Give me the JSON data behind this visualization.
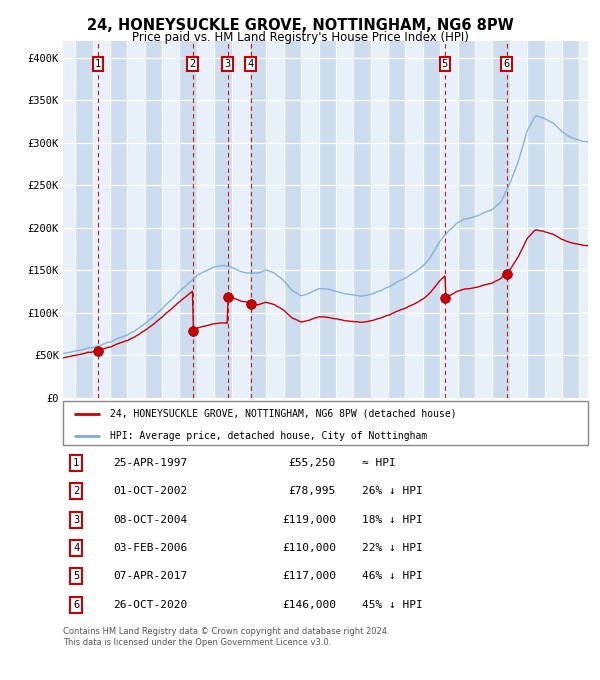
{
  "title1": "24, HONEYSUCKLE GROVE, NOTTINGHAM, NG6 8PW",
  "title2": "Price paid vs. HM Land Registry's House Price Index (HPI)",
  "legend_line1": "24, HONEYSUCKLE GROVE, NOTTINGHAM, NG6 8PW (detached house)",
  "legend_line2": "HPI: Average price, detached house, City of Nottingham",
  "footer1": "Contains HM Land Registry data © Crown copyright and database right 2024.",
  "footer2": "This data is licensed under the Open Government Licence v3.0.",
  "sale_color": "#cc0000",
  "hpi_color": "#7bafd4",
  "bg_color_dark": "#ccddf0",
  "bg_color_light": "#e8f1fa",
  "grid_color": "#ffffff",
  "dashed_color": "#cc0000",
  "transactions": [
    {
      "num": 1,
      "date_dec": 1997.31,
      "price": 55250,
      "label": "25-APR-1997",
      "price_str": "£55,250",
      "rel": "≈ HPI"
    },
    {
      "num": 2,
      "date_dec": 2002.75,
      "price": 78995,
      "label": "01-OCT-2002",
      "price_str": "£78,995",
      "rel": "26% ↓ HPI"
    },
    {
      "num": 3,
      "date_dec": 2004.77,
      "price": 119000,
      "label": "08-OCT-2004",
      "price_str": "£119,000",
      "rel": "18% ↓ HPI"
    },
    {
      "num": 4,
      "date_dec": 2006.09,
      "price": 110000,
      "label": "03-FEB-2006",
      "price_str": "£110,000",
      "rel": "22% ↓ HPI"
    },
    {
      "num": 5,
      "date_dec": 2017.27,
      "price": 117000,
      "label": "07-APR-2017",
      "price_str": "£117,000",
      "rel": "46% ↓ HPI"
    },
    {
      "num": 6,
      "date_dec": 2020.82,
      "price": 146000,
      "label": "26-OCT-2020",
      "price_str": "£146,000",
      "rel": "45% ↓ HPI"
    }
  ],
  "ylim": [
    0,
    420000
  ],
  "xlim_start": 1995.3,
  "xlim_end": 2025.5,
  "yticks": [
    0,
    50000,
    100000,
    150000,
    200000,
    250000,
    300000,
    350000,
    400000
  ],
  "ytick_labels": [
    "£0",
    "£50K",
    "£100K",
    "£150K",
    "£200K",
    "£250K",
    "£300K",
    "£350K",
    "£400K"
  ],
  "xticks": [
    1995,
    1996,
    1997,
    1998,
    1999,
    2000,
    2001,
    2002,
    2003,
    2004,
    2005,
    2006,
    2007,
    2008,
    2009,
    2010,
    2011,
    2012,
    2013,
    2014,
    2015,
    2016,
    2017,
    2018,
    2019,
    2020,
    2021,
    2022,
    2023,
    2024,
    2025
  ]
}
